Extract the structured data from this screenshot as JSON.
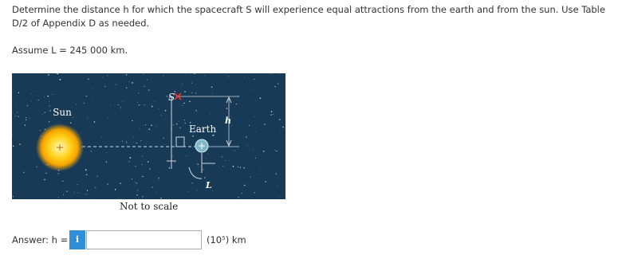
{
  "question": "Determine the distance h for which the spacecraft S will experience equal attractions from the earth and from the sun. Use Table D/2 of Appendix D as needed.",
  "assumption": "Assume L = 245 000 km.",
  "figure": {
    "sun": "Sun",
    "spacecraft": "S",
    "earth": "Earth",
    "h": "h",
    "L": "L",
    "note": "Not to scale"
  },
  "answer": {
    "label": "Answer: h =",
    "info": "i",
    "unit": "(10⁵) km"
  }
}
